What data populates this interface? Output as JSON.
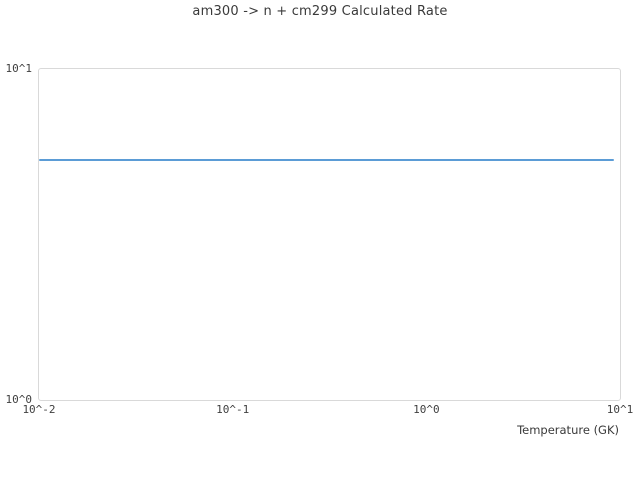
{
  "chart_data": {
    "type": "line",
    "title": "am300 -> n + cm299 Calculated Rate",
    "xlabel": "Temperature (GK)",
    "ylabel": "",
    "x_scale": "log",
    "y_scale": "log",
    "xlim": [
      0.01,
      10
    ],
    "ylim": [
      1,
      10
    ],
    "grid": false,
    "legend_visible": false,
    "x_ticks": [
      {
        "value": 0.01,
        "label": "10^-2"
      },
      {
        "value": 0.1,
        "label": "10^-1"
      },
      {
        "value": 1,
        "label": "10^0"
      },
      {
        "value": 10,
        "label": "10^1"
      }
    ],
    "y_ticks": [
      {
        "value": 1,
        "label": "10^0"
      },
      {
        "value": 10,
        "label": "10^1"
      }
    ],
    "series": [
      {
        "name": "calculated rate",
        "color": "#5b9cd6",
        "x": [
          0.01,
          9.3
        ],
        "y": [
          5.3,
          5.3
        ],
        "shape": "constant horizontal line"
      }
    ]
  },
  "colors": {
    "background": "#ffffff",
    "frame": "#d9d9d9",
    "text": "#3f3f3f",
    "line": "#5b9cd6"
  }
}
